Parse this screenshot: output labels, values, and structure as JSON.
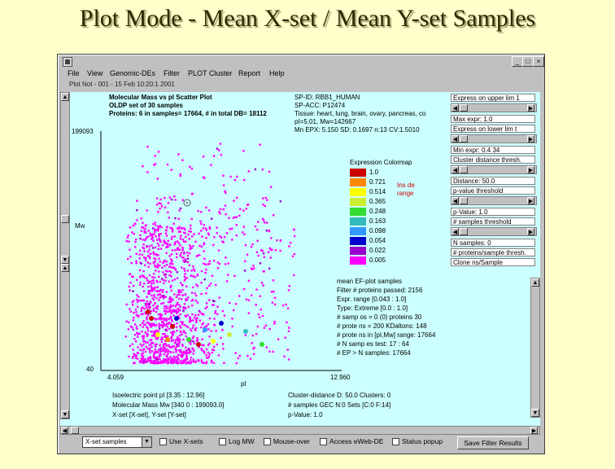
{
  "slide": {
    "title": "Plot Mode -  Mean X-set / Mean Y-set Samples"
  },
  "window": {
    "icon": "app-icon",
    "buttons": {
      "minimize": "_",
      "maximize": "□",
      "close": "×"
    },
    "menu": [
      "File",
      "View",
      "Genomic-DEs",
      "Filter",
      "PLOT",
      "Cluster",
      "Report",
      "Help"
    ],
    "plot_line": "Plot Not - 001 - 15 Feb 10:20:1 2001"
  },
  "plot_header": {
    "title": "Molecular Mass vs pI Scatter Plot",
    "subtitle": "OLDP set of 30 samples",
    "proteins": "Proteins: 6 in samples= 17664,  # in total DB= 18112",
    "ymax": "199093",
    "ymin": "40",
    "xmin": "4.059",
    "xmax": "12.960",
    "xlabel": "pI",
    "ylabel": "Mw"
  },
  "spot_info": [
    "SP-ID: RBB1_HUMAN",
    "SP-ACC: P12474",
    "Tissue: heart, lung, brain, ovary, pancreas, co",
    "pI=5.01,  Mw=142667",
    "Mn EPX: 5.150  SD: 0.1697  n:13  CV:1.5010"
  ],
  "colormap": {
    "title": "Expression Colormap",
    "note1": "Ins de",
    "note2": "range",
    "entries": [
      {
        "value": "1.0",
        "color": "#cc0000"
      },
      {
        "value": "0.721",
        "color": "#ff8800"
      },
      {
        "value": "0.514",
        "color": "#ffff00"
      },
      {
        "value": "0.365",
        "color": "#ccee33"
      },
      {
        "value": "0.248",
        "color": "#33dd33"
      },
      {
        "value": "0.163",
        "color": "#33bbbb"
      },
      {
        "value": "0.098",
        "color": "#3399ff"
      },
      {
        "value": "0.054",
        "color": "#0000cc"
      },
      {
        "value": "0.022",
        "color": "#9900cc"
      },
      {
        "value": "0.005",
        "color": "#ff00ff"
      }
    ]
  },
  "samples_info": [
    "mean EF-plot samples",
    "Filter # proteins passed: 2156",
    "Expr. range [0.043 : 1.0]",
    "Type: Extreme [0.0 : 1.0]",
    "# samp os = 0 (0) proteins 30",
    "# prote ns = 200 KDaltons: 148",
    "# prote ns in [pI,Mw] range: 17664",
    "# N samp es test: 17 : 64",
    "# EP > N samples: 17664"
  ],
  "footer_left": [
    "Isoelectric point pI [3.35 : 12.96]",
    "Molecular Mass Mw [340 0 : 199093.0]",
    "X-set [X-set], Y-set [Y-set]"
  ],
  "footer_right": [
    "Cluster-distance D: 50.0  Clusters: 0",
    "# samples GEC N:0  Sets [C:0 F:14]",
    "p-Value: 1.0"
  ],
  "right_panel": {
    "rows": [
      "Express on upper lim 1",
      "Max expr: 1.0",
      "Express on lower lim t",
      "Min expr: 0.4 34",
      "Cluster distance thresh.",
      "Distance: 50.0",
      "p-value threshold",
      "p-Value: 1.0",
      "# samples threshold",
      "N samples: 0",
      "# proteins/sample thresh.",
      "Clone ns/Sample"
    ]
  },
  "bottom": {
    "select_value": "X-set samples",
    "checkboxes": [
      "Use X-sets",
      "Log MW",
      "Mouse-over",
      "Access eWeb-DE",
      "Status popup"
    ],
    "save_button": "Save Filter Results"
  },
  "chart_data": {
    "type": "scatter",
    "title": "Molecular Mass vs pI Scatter Plot",
    "xlabel": "pI",
    "ylabel": "Mw",
    "xlim": [
      4.059,
      12.96
    ],
    "ylim": [
      40,
      199093
    ],
    "grid": false,
    "note": "Dense cloud of magenta protein spots concentrated between pI 4-9 and low Mw, with sparse high-Mw spots; a few colored spots (red, yellow, green, blue) near low Mw."
  }
}
